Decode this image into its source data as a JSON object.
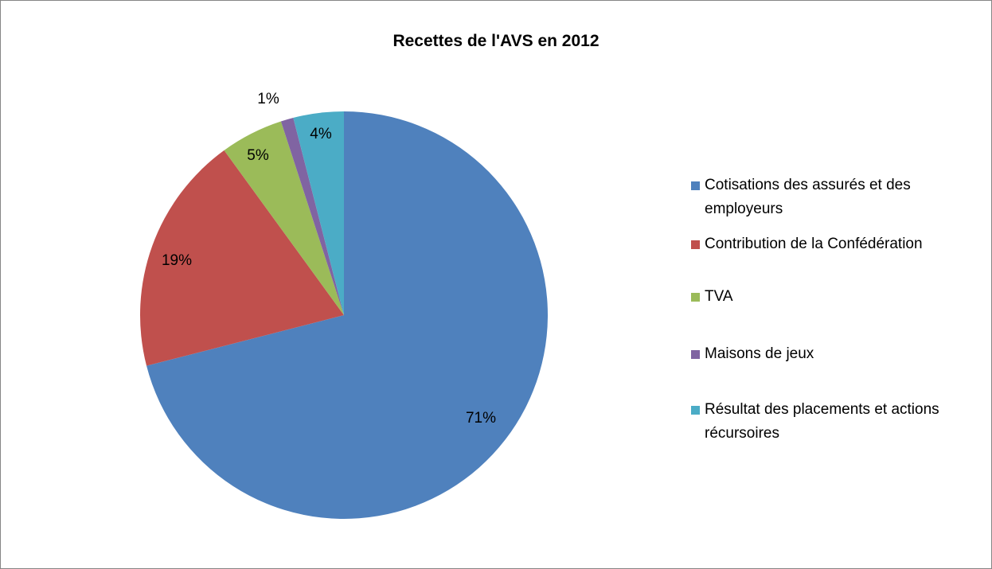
{
  "chart_data": {
    "type": "pie",
    "title": "Recettes de l'AVS en 2012",
    "legend_position": "right",
    "slices": [
      {
        "name": "Cotisations des assurés et des employeurs",
        "value": 71,
        "label": "71%",
        "color": "#4F81BD"
      },
      {
        "name": "Contribution de la Confédération",
        "value": 19,
        "label": "19%",
        "color": "#C0504D"
      },
      {
        "name": "TVA",
        "value": 5,
        "label": "5%",
        "color": "#9BBB59"
      },
      {
        "name": "Maisons de jeux",
        "value": 1,
        "label": "1%",
        "color": "#8064A2"
      },
      {
        "name": "Résultat des placements et actions récursoires",
        "value": 4,
        "label": "4%",
        "color": "#4BACC6"
      }
    ]
  }
}
